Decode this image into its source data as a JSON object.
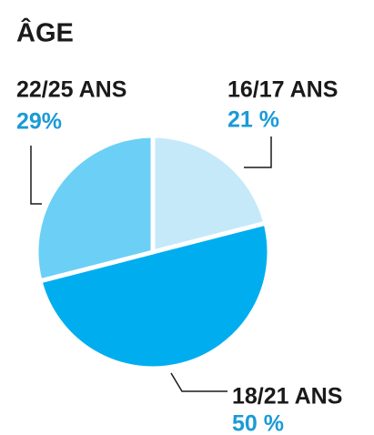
{
  "chart_data": {
    "type": "pie",
    "title": "ÂGE",
    "categories": [
      "16/17 ANS",
      "18/21 ANS",
      "22/25 ANS"
    ],
    "values": [
      21,
      50,
      29
    ],
    "value_labels": [
      "21 %",
      "50 %",
      "29%"
    ],
    "colors": [
      "#c6e9fa",
      "#00aeef",
      "#6ccff6"
    ]
  }
}
